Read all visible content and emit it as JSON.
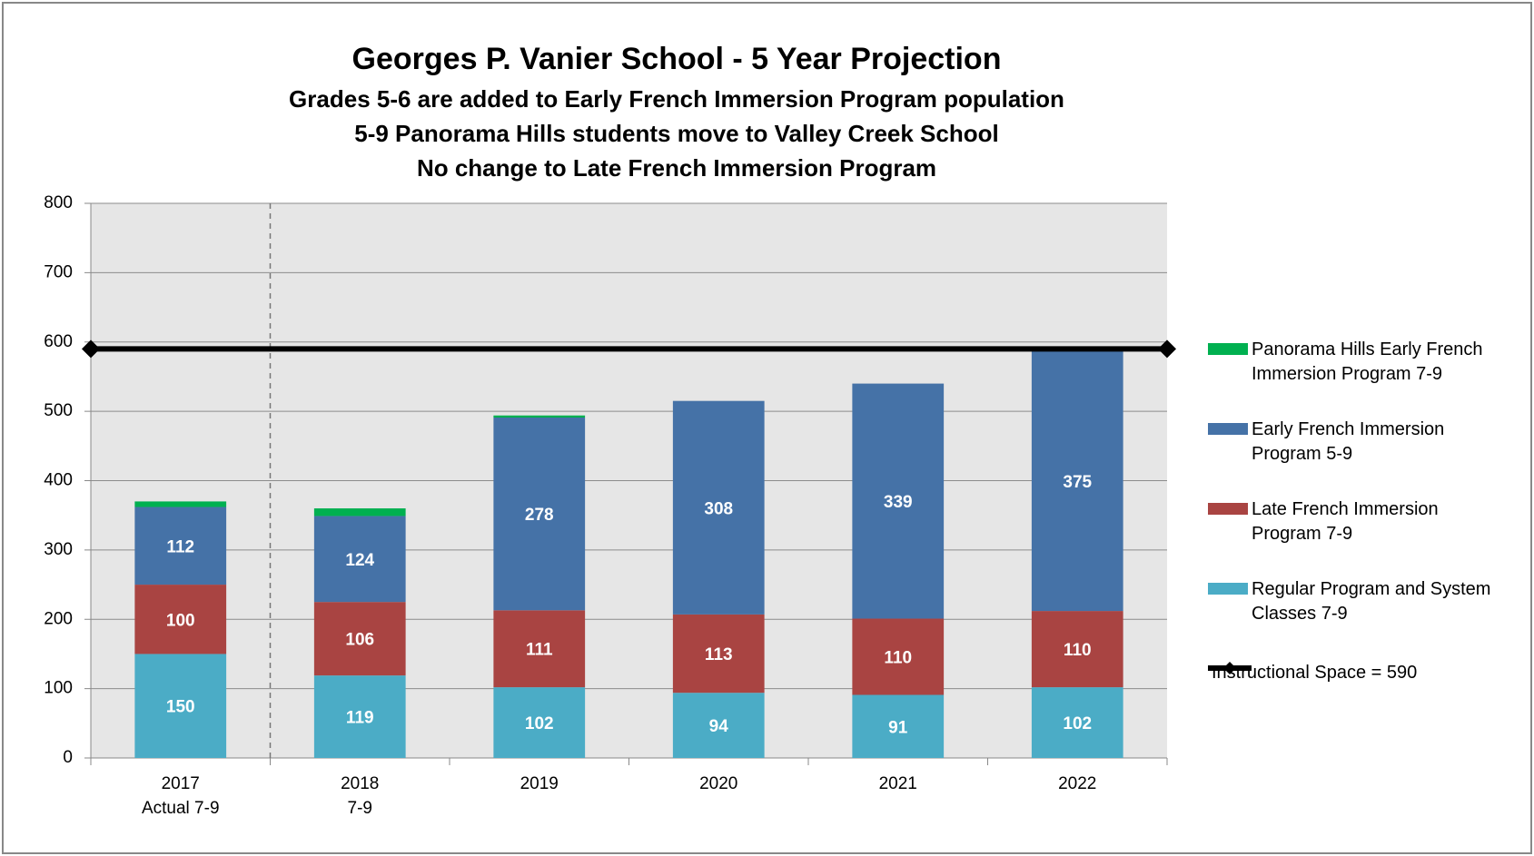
{
  "chart_data": {
    "type": "stacked_bar",
    "title": "Georges P. Vanier School - 5 Year Projection",
    "subtitles": [
      "Grades 5-6 are added to Early French Immersion Program population",
      "5-9 Panorama  Hills students move to Valley Creek School",
      "No change to Late French Immersion Program"
    ],
    "categories": [
      [
        "2017",
        "Actual 7-9"
      ],
      [
        "2018",
        "7-9"
      ],
      [
        "2019"
      ],
      [
        "2020"
      ],
      [
        "2021"
      ],
      [
        "2022"
      ]
    ],
    "series": [
      {
        "name": "Regular Program and System Classes 7-9",
        "color": "#4bacc6",
        "values": [
          150,
          119,
          102,
          94,
          91,
          102
        ],
        "data_labels": true
      },
      {
        "name": "Late French Immersion Program 7-9",
        "color": "#a94442",
        "values": [
          100,
          106,
          111,
          113,
          110,
          110
        ],
        "data_labels": true
      },
      {
        "name": "Early French Immersion Program 5-9",
        "color": "#4572a7",
        "values": [
          112,
          124,
          278,
          308,
          339,
          375
        ],
        "data_labels": true
      },
      {
        "name": "Panorama Hills Early French Immersion Program 7-9",
        "color": "#00b050",
        "values": [
          8,
          11,
          3,
          0,
          0,
          0
        ],
        "data_labels": false
      }
    ],
    "reference_line": {
      "name": "Instructional Space = 590",
      "value": 590,
      "color": "#000000"
    },
    "ylim": [
      0,
      800
    ],
    "yticks": [
      0,
      100,
      200,
      300,
      400,
      500,
      600,
      700,
      800
    ],
    "grid": true
  }
}
